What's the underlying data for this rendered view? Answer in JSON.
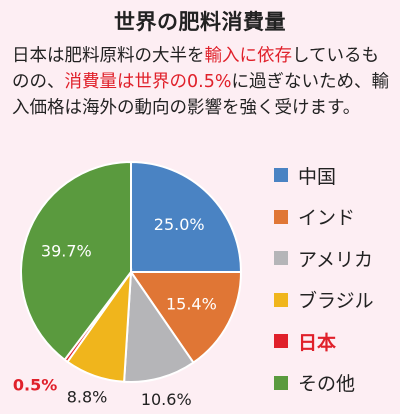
{
  "title": "世界の肥料消費量",
  "description": [
    {
      "text": "日本は肥料原料の大半を",
      "highlight": false
    },
    {
      "text": "輸入に依存",
      "highlight": true
    },
    {
      "text": "しているものの、",
      "highlight": false
    },
    {
      "text": "消費量は世界の0.5%",
      "highlight": true
    },
    {
      "text": "に過ぎないため、輸入価格は海外の動向の影響を強く受けます。",
      "highlight": false
    }
  ],
  "chart_data": {
    "type": "pie",
    "start": "top",
    "direction": "clockwise",
    "legend_position": "right",
    "slices": [
      {
        "name": "中国",
        "value": 25.0,
        "label": "25.0%",
        "color": "#4a83c3",
        "label_pos": "inside",
        "label_color": "#ffffff",
        "highlight": false
      },
      {
        "name": "インド",
        "value": 15.4,
        "label": "15.4%",
        "color": "#e07635",
        "label_pos": "inside",
        "label_color": "#ffffff",
        "highlight": false
      },
      {
        "name": "アメリカ",
        "value": 10.6,
        "label": "10.6%",
        "color": "#b5b5b8",
        "label_pos": "outside",
        "label_color": "#222222",
        "highlight": false
      },
      {
        "name": "ブラジル",
        "value": 8.8,
        "label": "8.8%",
        "color": "#f0b51c",
        "label_pos": "outside",
        "label_color": "#222222",
        "highlight": false
      },
      {
        "name": "日本",
        "value": 0.5,
        "label": "0.5%",
        "color": "#e0202a",
        "label_pos": "outside",
        "label_color": "#e0202a",
        "highlight": true
      },
      {
        "name": "その他",
        "value": 39.7,
        "label": "39.7%",
        "color": "#5a9a3e",
        "label_pos": "inside",
        "label_color": "#ffffff",
        "highlight": false
      }
    ]
  }
}
